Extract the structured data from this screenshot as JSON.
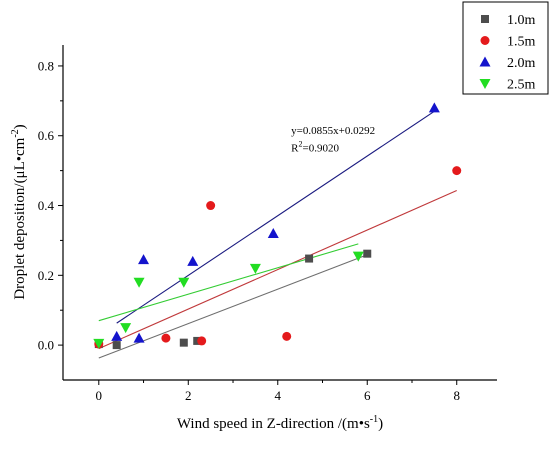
{
  "chart_data": {
    "type": "scatter",
    "title": "",
    "xlabel": "Wind speed in Z-direction /(m•s",
    "xlabel_sup": "-1",
    "xlabel_end": ")",
    "ylabel": "Droplet  deposition/(μL•cm",
    "ylabel_sup": "-2",
    "ylabel_end": ")",
    "xlim": [
      -0.8,
      8.9
    ],
    "ylim": [
      -0.1,
      0.86
    ],
    "xticks": [
      0,
      2,
      4,
      6,
      8
    ],
    "yticks": [
      0.0,
      0.2,
      0.4,
      0.6,
      0.8
    ],
    "xtick_labels": [
      "0",
      "2",
      "4",
      "6",
      "8"
    ],
    "ytick_labels": [
      "0.0",
      "0.2",
      "0.4",
      "0.6",
      "0.8"
    ],
    "legend_position": "top-right",
    "series": [
      {
        "name": "1.0m",
        "marker": "square",
        "color": "#4d4d4d",
        "points": [
          [
            0,
            0.003
          ],
          [
            0.4,
            0.0
          ],
          [
            1.9,
            0.007
          ],
          [
            2.2,
            0.012
          ],
          [
            4.7,
            0.248
          ],
          [
            6.0,
            0.262
          ]
        ],
        "fit": {
          "x": [
            0,
            6
          ],
          "y": [
            -0.037,
            0.259
          ],
          "color": "#6e6e6e"
        }
      },
      {
        "name": "1.5m",
        "marker": "circle",
        "color": "#e41a1c",
        "points": [
          [
            0,
            0.003
          ],
          [
            1.5,
            0.02
          ],
          [
            2.3,
            0.012
          ],
          [
            2.5,
            0.4
          ],
          [
            4.2,
            0.025
          ],
          [
            8.0,
            0.5
          ]
        ],
        "fit": {
          "x": [
            0,
            8
          ],
          "y": [
            -0.01,
            0.443
          ],
          "color": "#c0393b"
        }
      },
      {
        "name": "2.0m",
        "marker": "triangle-up",
        "color": "#1414cc",
        "points": [
          [
            0.4,
            0.025
          ],
          [
            0.9,
            0.02
          ],
          [
            1.0,
            0.245
          ],
          [
            2.1,
            0.24
          ],
          [
            3.9,
            0.32
          ],
          [
            7.5,
            0.68
          ]
        ],
        "fit": {
          "x": [
            0.4,
            7.5
          ],
          "y": [
            0.063,
            0.67
          ],
          "color": "#1a1a80"
        }
      },
      {
        "name": "2.5m",
        "marker": "triangle-down",
        "color": "#22dd22",
        "points": [
          [
            0,
            0.005
          ],
          [
            0.6,
            0.05
          ],
          [
            0.9,
            0.18
          ],
          [
            1.9,
            0.18
          ],
          [
            3.5,
            0.22
          ],
          [
            5.8,
            0.255
          ]
        ],
        "fit": {
          "x": [
            0,
            5.8
          ],
          "y": [
            0.07,
            0.29
          ],
          "color": "#33cc33"
        }
      }
    ],
    "annotations": [
      {
        "text": "y=0.0855x+0.0292",
        "x": 4.3,
        "y": 0.605
      },
      {
        "text": "R",
        "sup": "2",
        "after": "=0.9020",
        "x": 4.3,
        "y": 0.555
      }
    ]
  }
}
